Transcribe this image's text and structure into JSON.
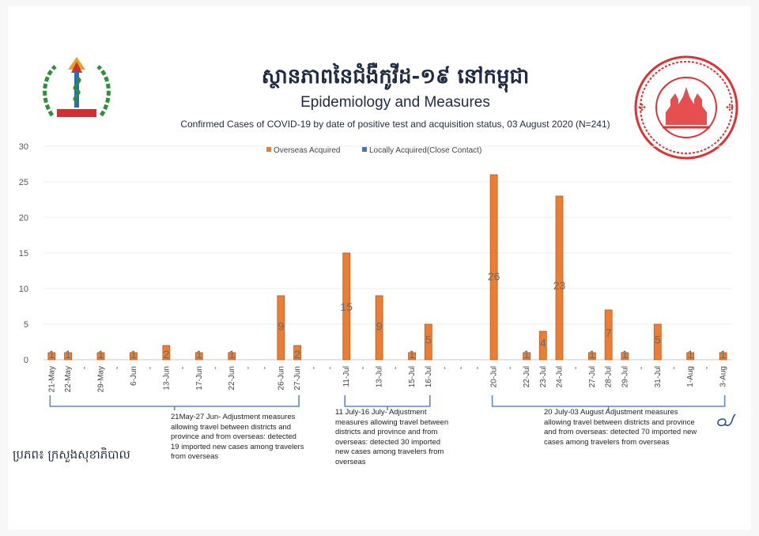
{
  "header": {
    "title_km": "ស្ថានភាពនៃជំងឺកូវីដ-១៩ នៅកម្ពុជា",
    "title_en": "Epidemiology and Measures",
    "subtitle": "Confirmed Cases of COVID-19 by date of positive test and acquisition status, 03 August 2020 (N=241)"
  },
  "chart_data": {
    "type": "bar",
    "title": "Confirmed Cases of COVID-19 by date of positive test and acquisition status, 03 August 2020 (N=241)",
    "xlabel": "",
    "ylabel": "",
    "ylim": [
      0,
      30
    ],
    "yticks": [
      0,
      5,
      10,
      15,
      20,
      25,
      30
    ],
    "grid": true,
    "legend_position": "top",
    "categories": [
      "21-May",
      "22-May",
      "",
      "29-May",
      "",
      "6-Jun",
      "",
      "13-Jun",
      "",
      "17-Jun",
      "",
      "22-Jun",
      "",
      "",
      "26-Jun",
      "27-Jun",
      "",
      "",
      "11-Jul",
      "",
      "13-Jul",
      "",
      "15-Jul",
      "16-Jul",
      "",
      "",
      "",
      "20-Jul",
      "",
      "22-Jul",
      "23-Jul",
      "24-Jul",
      "",
      "27-Jul",
      "28-Jul",
      "29-Jul",
      "",
      "31-Jul",
      "",
      "1-Aug",
      "",
      "3-Aug"
    ],
    "series": [
      {
        "name": "Overseas Acquired",
        "color": "#ed7d31",
        "values": [
          1,
          1,
          0,
          1,
          0,
          1,
          0,
          2,
          0,
          1,
          0,
          1,
          0,
          0,
          9,
          2,
          0,
          0,
          15,
          0,
          9,
          0,
          1,
          5,
          0,
          0,
          0,
          26,
          0,
          1,
          4,
          23,
          0,
          1,
          7,
          1,
          0,
          5,
          0,
          1,
          0,
          1
        ]
      },
      {
        "name": "Locally Acquired(Close Contact)",
        "color": "#4472c4",
        "values": [
          0,
          0,
          0,
          0,
          0,
          0,
          0,
          0,
          0,
          0,
          0,
          0,
          0,
          0,
          0,
          0,
          0,
          0,
          0,
          0,
          0,
          0,
          0,
          0,
          0,
          0,
          0,
          0,
          0,
          0,
          0,
          0,
          0,
          0,
          0,
          0,
          0,
          0,
          0,
          0,
          0,
          0
        ]
      }
    ]
  },
  "notes": [
    {
      "text": "21May-27 Jun- Adjustment measures allowing travel between districts and province and from overseas: detected 19 imported new cases among travelers from overseas"
    },
    {
      "text": "11 July-16 July- Adjustment measures allowing travel between districts and province and from overseas: detected 30 imported new cases among travelers from overseas"
    },
    {
      "text": "20 July-03 August Adjustment measures allowing travel between districts and province and from overseas: detected 70 imported new cases among travelers from overseas"
    }
  ],
  "footer": {
    "source": "ប្រភព៖ ក្រសួងសុខាភិបាល"
  },
  "colors": {
    "overseas": "#ed7d31",
    "local": "#4472c4",
    "bracket": "#5b8ac7",
    "title": "#1f2a44",
    "seal": "#e03030"
  }
}
